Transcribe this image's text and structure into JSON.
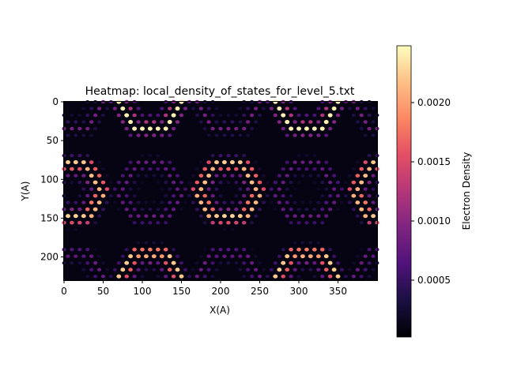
{
  "chart_data": {
    "type": "heatmap",
    "title": "Heatmap: local_density_of_states_for_level_5.txt",
    "xlabel": "X(A)",
    "ylabel": "Y(A)",
    "xlim": [
      0,
      400
    ],
    "ylim": [
      230,
      0
    ],
    "x_ticks": [
      0,
      50,
      100,
      150,
      200,
      250,
      300,
      350
    ],
    "y_ticks": [
      0,
      50,
      100,
      150,
      200
    ],
    "colormap": "magma",
    "colorbar": {
      "label": "Electron Density",
      "range": [
        2e-05,
        0.00248
      ],
      "ticks": [
        0.0005,
        0.001,
        0.0015,
        0.002
      ],
      "tick_labels": [
        "0.0005",
        "0.0010",
        "0.0015",
        "0.0020"
      ]
    },
    "pattern": {
      "description_of_data": "hexagonal rings of localized density spots",
      "bright_centers": [
        [
          110,
          0
        ],
        [
          310,
          0
        ],
        [
          10,
          115
        ],
        [
          210,
          115
        ],
        [
          410,
          115
        ],
        [
          110,
          230
        ],
        [
          310,
          230
        ]
      ],
      "dim_centers": [
        [
          10,
          0
        ],
        [
          210,
          0
        ],
        [
          410,
          0
        ],
        [
          110,
          115
        ],
        [
          310,
          115
        ],
        [
          10,
          230
        ],
        [
          210,
          230
        ],
        [
          410,
          230
        ]
      ],
      "ring_radius": 40,
      "lattice_spacing": 10,
      "peak_value": 0.0024,
      "background_value": 3e-05
    }
  }
}
